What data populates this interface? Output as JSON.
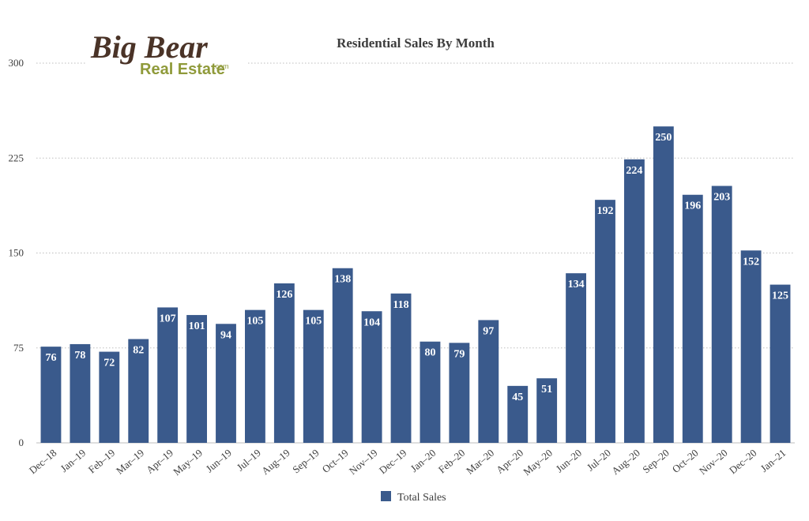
{
  "logo": {
    "line1": "Big Bear",
    "line2": "Real Estate",
    "suffix": ".com"
  },
  "colors": {
    "bar": "#3a5a8c",
    "grid": "#bdbdbd",
    "text": "#3d3d3d",
    "logo_brown": "#4a3327",
    "logo_green": "#8f9a3a"
  },
  "chart_data": {
    "type": "bar",
    "title": "Residential Sales By Month",
    "xlabel": "",
    "ylabel": "",
    "ylim": [
      0,
      300
    ],
    "yticks": [
      0,
      75,
      150,
      225,
      300
    ],
    "grid": true,
    "legend_position": "bottom",
    "categories": [
      "Dec–18",
      "Jan–19",
      "Feb–19",
      "Mar–19",
      "Apr–19",
      "May–19",
      "Jun–19",
      "Jul–19",
      "Aug–19",
      "Sep–19",
      "Oct–19",
      "Nov–19",
      "Dec–19",
      "Jan–20",
      "Feb–20",
      "Mar–20",
      "Apr–20",
      "May–20",
      "Jun–20",
      "Jul–20",
      "Aug–20",
      "Sep–20",
      "Oct–20",
      "Nov–20",
      "Dec–20",
      "Jan–21"
    ],
    "series": [
      {
        "name": "Total Sales",
        "values": [
          76,
          78,
          72,
          82,
          107,
          101,
          94,
          105,
          126,
          105,
          138,
          104,
          118,
          80,
          79,
          97,
          45,
          51,
          134,
          192,
          224,
          250,
          196,
          203,
          152,
          125
        ]
      }
    ]
  }
}
